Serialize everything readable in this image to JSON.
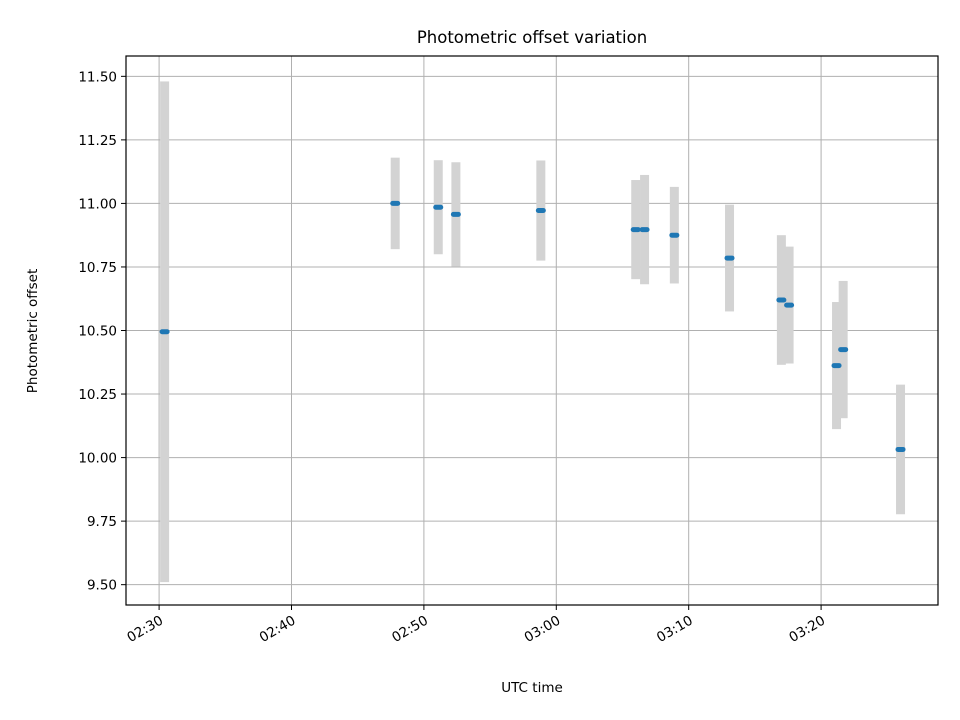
{
  "chart_data": {
    "type": "scatter",
    "title": "Photometric offset variation",
    "xlabel": "UTC time",
    "ylabel": "Photometric offset",
    "x_axis_type": "time",
    "x_range": [
      "02:27:30",
      "03:28:50"
    ],
    "xlim_minutes": [
      147.5,
      208.83
    ],
    "ylim": [
      9.42,
      11.58
    ],
    "x_ticks": [
      "02:30",
      "02:40",
      "02:50",
      "03:00",
      "03:10",
      "03:20"
    ],
    "y_ticks": [
      "9.50",
      "9.75",
      "10.00",
      "10.25",
      "10.50",
      "10.75",
      "11.00",
      "11.25",
      "11.50"
    ],
    "grid": true,
    "series": [
      {
        "marker_color": "#1f77b4",
        "errorbar_color": "#d3d3d3",
        "points": [
          {
            "x": "02:30:25",
            "y": 10.495,
            "yerr": 0.985
          },
          {
            "x": "02:47:50",
            "y": 11.0,
            "yerr": 0.18
          },
          {
            "x": "02:51:05",
            "y": 10.985,
            "yerr": 0.185
          },
          {
            "x": "02:52:25",
            "y": 10.957,
            "yerr": 0.205
          },
          {
            "x": "02:58:50",
            "y": 10.972,
            "yerr": 0.197
          },
          {
            "x": "03:06:00",
            "y": 10.897,
            "yerr": 0.195
          },
          {
            "x": "03:06:40",
            "y": 10.897,
            "yerr": 0.215
          },
          {
            "x": "03:08:55",
            "y": 10.875,
            "yerr": 0.19
          },
          {
            "x": "03:13:05",
            "y": 10.785,
            "yerr": 0.21
          },
          {
            "x": "03:17:00",
            "y": 10.62,
            "yerr": 0.255
          },
          {
            "x": "03:17:35",
            "y": 10.6,
            "yerr": 0.23
          },
          {
            "x": "03:21:10",
            "y": 10.362,
            "yerr": 0.25
          },
          {
            "x": "03:21:40",
            "y": 10.425,
            "yerr": 0.27
          },
          {
            "x": "03:26:00",
            "y": 10.032,
            "yerr": 0.255
          }
        ]
      }
    ]
  }
}
